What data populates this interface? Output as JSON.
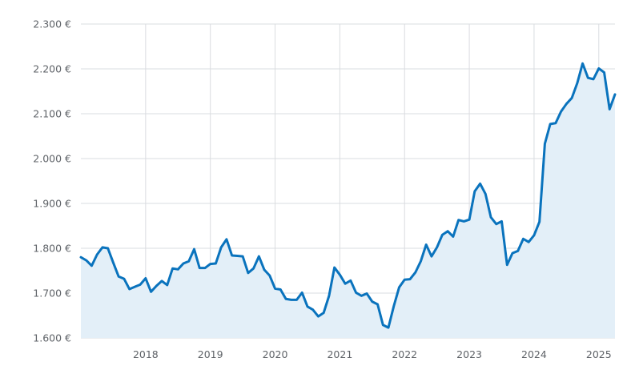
{
  "chart_data": {
    "type": "area",
    "title": "",
    "xlabel": "",
    "ylabel": "",
    "ylim": [
      1600,
      2300
    ],
    "xlim": [
      "2017-01",
      "2025-04"
    ],
    "grid": true,
    "legend": "none",
    "colors": {
      "line": "#0a73bd",
      "fill": "#e3eff8",
      "grid": "#dadce0",
      "text": "#5f6368"
    },
    "y_ticks": [
      {
        "value": 1600,
        "label": "1.600 €"
      },
      {
        "value": 1700,
        "label": "1.700 €"
      },
      {
        "value": 1800,
        "label": "1.800 €"
      },
      {
        "value": 1900,
        "label": "1.900 €"
      },
      {
        "value": 2000,
        "label": "2.000 €"
      },
      {
        "value": 2100,
        "label": "2.100 €"
      },
      {
        "value": 2200,
        "label": "2.200 €"
      },
      {
        "value": 2300,
        "label": "2.300 €"
      }
    ],
    "x_ticks": [
      {
        "value": "2018-01",
        "label": "2018"
      },
      {
        "value": "2019-01",
        "label": "2019"
      },
      {
        "value": "2020-01",
        "label": "2020"
      },
      {
        "value": "2021-01",
        "label": "2021"
      },
      {
        "value": "2022-01",
        "label": "2022"
      },
      {
        "value": "2023-01",
        "label": "2023"
      },
      {
        "value": "2024-01",
        "label": "2024"
      },
      {
        "value": "2025-01",
        "label": "2025"
      }
    ],
    "series": [
      {
        "x": [
          "2017-01",
          "2017-02",
          "2017-03",
          "2017-04",
          "2017-05",
          "2017-06",
          "2017-07",
          "2017-08",
          "2017-09",
          "2017-10",
          "2017-11",
          "2017-12",
          "2018-01",
          "2018-02",
          "2018-03",
          "2018-04",
          "2018-05",
          "2018-06",
          "2018-07",
          "2018-08",
          "2018-09",
          "2018-10",
          "2018-11",
          "2018-12",
          "2019-01",
          "2019-02",
          "2019-03",
          "2019-04",
          "2019-05",
          "2019-06",
          "2019-07",
          "2019-08",
          "2019-09",
          "2019-10",
          "2019-11",
          "2019-12",
          "2020-01",
          "2020-02",
          "2020-03",
          "2020-04",
          "2020-05",
          "2020-06",
          "2020-07",
          "2020-08",
          "2020-09",
          "2020-10",
          "2020-11",
          "2020-12",
          "2021-01",
          "2021-02",
          "2021-03",
          "2021-04",
          "2021-05",
          "2021-06",
          "2021-07",
          "2021-08",
          "2021-09",
          "2021-10",
          "2021-11",
          "2021-12",
          "2022-01",
          "2022-02",
          "2022-03",
          "2022-04",
          "2022-05",
          "2022-06",
          "2022-07",
          "2022-08",
          "2022-09",
          "2022-10",
          "2022-11",
          "2022-12",
          "2023-01",
          "2023-02",
          "2023-03",
          "2023-04",
          "2023-05",
          "2023-06",
          "2023-07",
          "2023-08",
          "2023-09",
          "2023-10",
          "2023-11",
          "2023-12",
          "2024-01",
          "2024-02",
          "2024-03",
          "2024-04",
          "2024-05",
          "2024-06",
          "2024-07",
          "2024-08",
          "2024-09",
          "2024-10",
          "2024-11",
          "2024-12",
          "2025-01",
          "2025-02",
          "2025-03",
          "2025-04"
        ],
        "values": [
          1780,
          1773,
          1761,
          1786,
          1802,
          1800,
          1768,
          1737,
          1732,
          1709,
          1714,
          1719,
          1733,
          1703,
          1716,
          1727,
          1718,
          1755,
          1753,
          1766,
          1771,
          1798,
          1756,
          1756,
          1765,
          1766,
          1802,
          1820,
          1784,
          1783,
          1782,
          1745,
          1755,
          1782,
          1752,
          1739,
          1710,
          1708,
          1687,
          1685,
          1685,
          1701,
          1670,
          1663,
          1648,
          1656,
          1694,
          1757,
          1741,
          1721,
          1728,
          1701,
          1694,
          1699,
          1681,
          1675,
          1629,
          1623,
          1671,
          1713,
          1730,
          1731,
          1746,
          1771,
          1808,
          1782,
          1802,
          1830,
          1838,
          1826,
          1863,
          1860,
          1864,
          1927,
          1944,
          1921,
          1869,
          1854,
          1860,
          1763,
          1789,
          1794,
          1821,
          1814,
          1829,
          1859,
          2033,
          2077,
          2079,
          2105,
          2122,
          2135,
          2168,
          2212,
          2180,
          2177,
          2201,
          2192,
          2110,
          2143
        ]
      }
    ]
  }
}
